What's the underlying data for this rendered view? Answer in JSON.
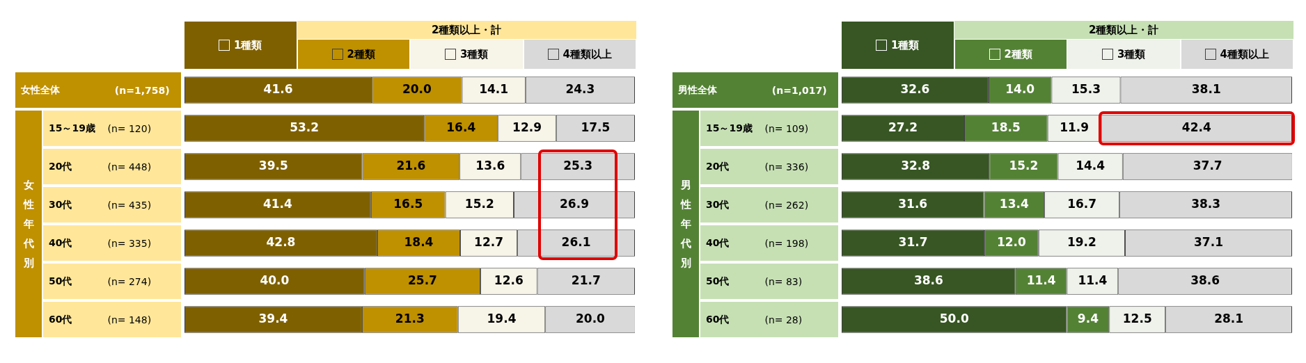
{
  "chart_data": [
    {
      "type": "bar",
      "orientation": "horizontal",
      "stacked": true,
      "legend": "top",
      "legend_title": "2種類以上・計",
      "tick_labels": "y",
      "xlim": [
        0,
        100
      ],
      "annotations": [
        "女性年代別"
      ],
      "categories": [
        "女性全体 (n=1,758)",
        "15～19歳 (n= 120)",
        "20代 (n= 448)",
        "30代 (n= 435)",
        "40代 (n= 335)",
        "50代 (n= 274)",
        "60代 (n= 148)"
      ],
      "series": [
        {
          "name": "1種類",
          "color": "#7f6000",
          "values": [
            41.6,
            53.2,
            39.5,
            41.4,
            42.8,
            40.0,
            39.4
          ],
          "value_labels": [
            "41.6",
            "53.2",
            "39.5",
            "41.4",
            "42.8",
            "40.0",
            "39.4"
          ]
        },
        {
          "name": "2種類",
          "color": "#bf9000",
          "values": [
            20.0,
            16.4,
            21.6,
            16.5,
            18.4,
            25.7,
            21.3
          ],
          "value_labels": [
            "20.0",
            "16.4",
            "21.6",
            "16.5",
            "18.4",
            "25.7",
            "21.3"
          ]
        },
        {
          "name": "3種類",
          "color": "#f7f4e8",
          "values": [
            14.1,
            12.9,
            13.6,
            15.2,
            12.7,
            12.6,
            19.4
          ],
          "value_labels": [
            "14.1",
            "12.9",
            "13.6",
            "15.2",
            "12.7",
            "12.6",
            "19.4"
          ]
        },
        {
          "name": "4種類以上",
          "color": "#d9d9d9",
          "values": [
            24.3,
            17.5,
            25.3,
            26.9,
            26.1,
            21.7,
            20.0
          ],
          "value_labels": [
            "24.3",
            "17.5",
            "25.3",
            "26.9",
            "26.1",
            "21.7",
            "20.0"
          ]
        }
      ]
    },
    {
      "type": "bar",
      "orientation": "horizontal",
      "stacked": true,
      "legend": "top",
      "legend_title": "2種類以上・計",
      "tick_labels": "y",
      "xlim": [
        0,
        100
      ],
      "annotations": [
        "男性年代別"
      ],
      "categories": [
        "男性全体 (n=1,017)",
        "15～19歳 (n= 109)",
        "20代 (n= 336)",
        "30代 (n= 262)",
        "40代 (n= 198)",
        "50代 (n= 83)",
        "60代 (n= 28)"
      ],
      "series": [
        {
          "name": "1種類",
          "color": "#375623",
          "values": [
            32.6,
            27.2,
            32.8,
            31.6,
            31.7,
            38.6,
            50.0
          ],
          "value_labels": [
            "32.6",
            "27.2",
            "32.8",
            "31.6",
            "31.7",
            "38.6",
            "50.0"
          ]
        },
        {
          "name": "2種類",
          "color": "#548235",
          "values": [
            14.0,
            18.5,
            15.2,
            13.4,
            12.0,
            11.4,
            9.4
          ],
          "value_labels": [
            "14.0",
            "18.5",
            "15.2",
            "13.4",
            "12.0",
            "11.4",
            "9.4"
          ]
        },
        {
          "name": "3種類",
          "color": "#eef2ea",
          "values": [
            15.3,
            11.9,
            14.4,
            16.7,
            19.2,
            11.4,
            12.5
          ],
          "value_labels": [
            "15.3",
            "11.9",
            "14.4",
            "16.7",
            "19.2",
            "11.4",
            "12.5"
          ]
        },
        {
          "name": "4種類以上",
          "color": "#d9d9d9",
          "values": [
            38.1,
            42.4,
            37.7,
            38.3,
            37.1,
            38.6,
            28.1
          ],
          "value_labels": [
            "38.1",
            "42.4",
            "37.7",
            "38.3",
            "37.1",
            "38.6",
            "28.1"
          ]
        }
      ]
    }
  ]
}
